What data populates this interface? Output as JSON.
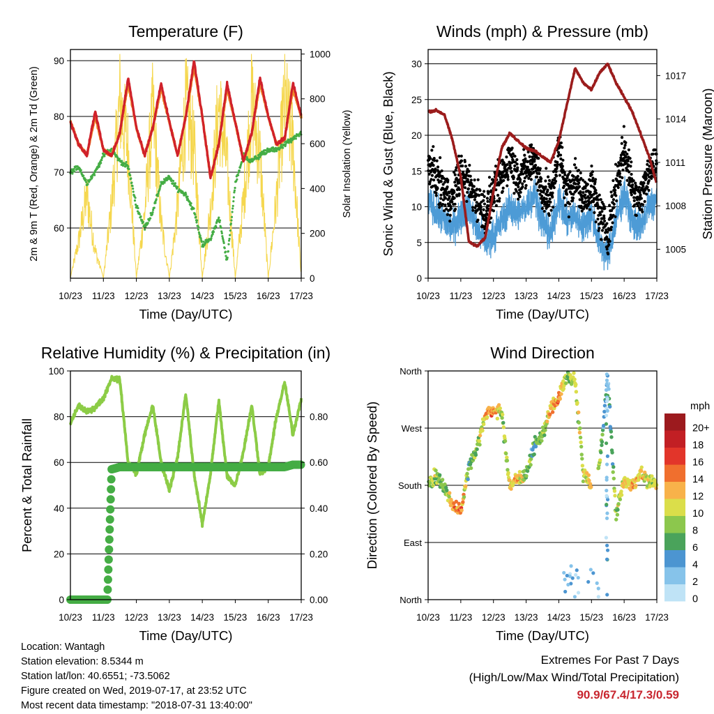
{
  "x_ticks": [
    "10/23",
    "11/23",
    "12/23",
    "13/23",
    "14/23",
    "15/23",
    "16/23",
    "17/23"
  ],
  "xlabel": "Time (Day/UTC)",
  "info": {
    "location": "Location: Wantagh",
    "elevation": "Station elevation: 8.5344 m",
    "latlon": "Station lat/lon: 40.6551; -73.5062",
    "created": "Figure created on Wed, 2019-07-17, at 23:52 UTC",
    "timestamp": "Most recent data timestamp: \"2018-07-31 13:40:00\""
  },
  "extremes": {
    "title": "Extremes For Past 7 Days",
    "subtitle": "(High/Low/Max Wind/Total Precipitation)",
    "values": "90.9/67.4/17.3/0.59"
  },
  "colors": {
    "temp_2m": "#d0212a",
    "temp_9m": "#f08a2a",
    "dewpoint": "#45ad45",
    "insolation": "#f5d74e",
    "wind": "#4d9bd6",
    "gust": "#000000",
    "pressure": "#9b1c1c",
    "rh": "#8ccc46",
    "rain": "#45ad45"
  },
  "chart_data": [
    {
      "type": "line",
      "title": "Temperature (F)",
      "xlabel": "Time (Day/UTC)",
      "ylabel": "2m & 9m T (Red, Orange) & 2m Td (Green)",
      "ylabel_right": "Solar Insolation (Yellow)",
      "ylim": [
        51,
        92
      ],
      "y2lim": [
        0,
        1020
      ],
      "yticks": [
        60,
        70,
        80,
        90
      ],
      "y2ticks": [
        0,
        200,
        400,
        600,
        800,
        1000
      ],
      "grid": true,
      "x": [
        10,
        10.25,
        10.5,
        10.75,
        11,
        11.25,
        11.5,
        11.75,
        12,
        12.25,
        12.5,
        12.75,
        13,
        13.25,
        13.5,
        13.75,
        14,
        14.25,
        14.5,
        14.75,
        15,
        15.25,
        15.5,
        15.75,
        16,
        16.25,
        16.5,
        16.75,
        17
      ],
      "series": [
        {
          "name": "2m T",
          "values": [
            79,
            75,
            73,
            81,
            74,
            73,
            77,
            87,
            78,
            73,
            78,
            86,
            79,
            73,
            80,
            90,
            80,
            69,
            75,
            86,
            79,
            72,
            77,
            87,
            80,
            75,
            76,
            86,
            80
          ]
        },
        {
          "name": "9m T",
          "values": [
            79,
            75,
            73,
            80,
            74,
            73,
            77,
            86,
            78,
            73,
            78,
            85,
            79,
            73,
            80,
            89,
            80,
            69,
            75,
            85,
            79,
            72,
            77,
            86,
            80,
            75,
            76,
            85,
            80
          ]
        },
        {
          "name": "2m Td",
          "values": [
            70,
            71,
            68,
            70,
            73,
            74,
            72,
            71,
            64,
            60,
            63,
            68,
            69,
            67,
            66,
            63,
            57,
            58,
            62,
            54,
            68,
            73,
            72,
            73,
            74,
            74,
            75,
            76,
            77
          ]
        },
        {
          "name": "Solar Insolation",
          "axis": "right",
          "values": [
            0,
            200,
            450,
            150,
            0,
            400,
            950,
            700,
            0,
            350,
            900,
            300,
            0,
            380,
            920,
            700,
            0,
            380,
            930,
            600,
            0,
            420,
            950,
            650,
            0,
            430,
            960,
            720,
            0
          ]
        }
      ]
    },
    {
      "type": "line",
      "title": "Winds (mph) & Pressure (mb)",
      "xlabel": "Time (Day/UTC)",
      "ylabel": "Sonic Wind & Gust (Blue, Black)",
      "ylabel_right": "Station Pressure (Maroon)",
      "ylim": [
        0,
        32
      ],
      "y2lim": [
        1003.0,
        1018.8
      ],
      "yticks": [
        0,
        5,
        10,
        15,
        20,
        25,
        30
      ],
      "y2ticks": [
        1005,
        1008,
        1011,
        1014,
        1017
      ],
      "grid": true,
      "x": [
        10,
        10.25,
        10.5,
        10.75,
        11,
        11.25,
        11.5,
        11.75,
        12,
        12.25,
        12.5,
        12.75,
        13,
        13.25,
        13.5,
        13.75,
        14,
        14.25,
        14.5,
        14.75,
        15,
        15.25,
        15.5,
        15.75,
        16,
        16.25,
        16.5,
        16.75,
        17
      ],
      "series": [
        {
          "name": "Sonic Wind",
          "values": [
            11,
            9,
            8,
            7,
            9,
            10,
            7,
            5,
            6,
            8,
            10,
            9,
            10,
            12,
            8,
            6,
            11,
            8,
            9,
            7,
            9,
            5,
            3,
            8,
            12,
            8,
            7,
            10,
            11
          ]
        },
        {
          "name": "Gust",
          "values": [
            16,
            14,
            12,
            11,
            15,
            13,
            11,
            9,
            12,
            14,
            17,
            14,
            15,
            17,
            12,
            11,
            18,
            12,
            14,
            11,
            13,
            9,
            6,
            13,
            18,
            13,
            11,
            15,
            16
          ]
        },
        {
          "name": "Station Pressure",
          "axis": "right",
          "values": [
            1014.5,
            1014.6,
            1014.3,
            1012.5,
            1010.0,
            1005.5,
            1005.2,
            1005.8,
            1009.0,
            1012.0,
            1013.0,
            1012.5,
            1012.0,
            1011.8,
            1011.4,
            1011.0,
            1012.5,
            1015.0,
            1017.5,
            1016.5,
            1016.0,
            1017.2,
            1017.8,
            1016.5,
            1015.5,
            1014.5,
            1013.0,
            1011.5,
            1009.5
          ]
        }
      ]
    },
    {
      "type": "line",
      "title": "Relative Humidity (%) & Precipitation (in)",
      "xlabel": "Time (Day/UTC)",
      "ylabel": "Percent & Total Rainfall",
      "ylim": [
        0,
        100
      ],
      "y2lim": [
        0,
        1.0
      ],
      "yticks": [
        0,
        20,
        40,
        60,
        80,
        100
      ],
      "y2ticks": [
        0.0,
        0.2,
        0.4,
        0.6,
        0.8
      ],
      "grid": true,
      "x": [
        10,
        10.25,
        10.5,
        10.75,
        11,
        11.25,
        11.5,
        11.75,
        12,
        12.25,
        12.5,
        12.75,
        13,
        13.25,
        13.5,
        13.75,
        14,
        14.25,
        14.5,
        14.75,
        15,
        15.25,
        15.5,
        15.75,
        16,
        16.25,
        16.5,
        16.75,
        17
      ],
      "series": [
        {
          "name": "Relative Humidity",
          "values": [
            77,
            85,
            82,
            84,
            88,
            97,
            96,
            60,
            55,
            72,
            85,
            60,
            48,
            62,
            90,
            55,
            33,
            55,
            87,
            54,
            50,
            65,
            85,
            55,
            58,
            80,
            95,
            72,
            88
          ]
        },
        {
          "name": "Total Rainfall",
          "axis": "right",
          "values": [
            0,
            0,
            0,
            0,
            0,
            0.57,
            0.58,
            0.58,
            0.58,
            0.58,
            0.58,
            0.58,
            0.58,
            0.58,
            0.58,
            0.58,
            0.58,
            0.58,
            0.58,
            0.58,
            0.58,
            0.58,
            0.58,
            0.58,
            0.58,
            0.58,
            0.58,
            0.59,
            0.59
          ]
        }
      ]
    },
    {
      "type": "scatter",
      "title": "Wind Direction",
      "xlabel": "Time (Day/UTC)",
      "ylabel": "Direction (Colored By Speed)",
      "yticks": [
        "North",
        "East",
        "South",
        "West",
        "North"
      ],
      "ylim": [
        0,
        360
      ],
      "legend": {
        "title": "mph",
        "labels": [
          "20+",
          "18",
          "16",
          "14",
          "12",
          "10",
          "8",
          "6",
          "4",
          "2",
          "0"
        ],
        "placement": "right"
      },
      "x": [
        10,
        10.25,
        10.5,
        10.75,
        11,
        11.25,
        11.5,
        11.75,
        12,
        12.25,
        12.5,
        12.75,
        13,
        13.25,
        13.5,
        13.75,
        14,
        14.25,
        14.5,
        14.75,
        15,
        15.25,
        15.5,
        15.75,
        16,
        16.25,
        16.5,
        16.75,
        17
      ],
      "direction": [
        180,
        195,
        175,
        150,
        140,
        210,
        240,
        290,
        300,
        295,
        180,
        190,
        200,
        240,
        260,
        300,
        320,
        350,
        345,
        200,
        180,
        215,
        350,
        130,
        190,
        180,
        200,
        185,
        180
      ],
      "speed": [
        9,
        8,
        7,
        12,
        14,
        6,
        8,
        12,
        13,
        8,
        10,
        12,
        7,
        6,
        8,
        11,
        13,
        8,
        9,
        9,
        11,
        8,
        3,
        9,
        10,
        12,
        11,
        9,
        10
      ]
    }
  ]
}
